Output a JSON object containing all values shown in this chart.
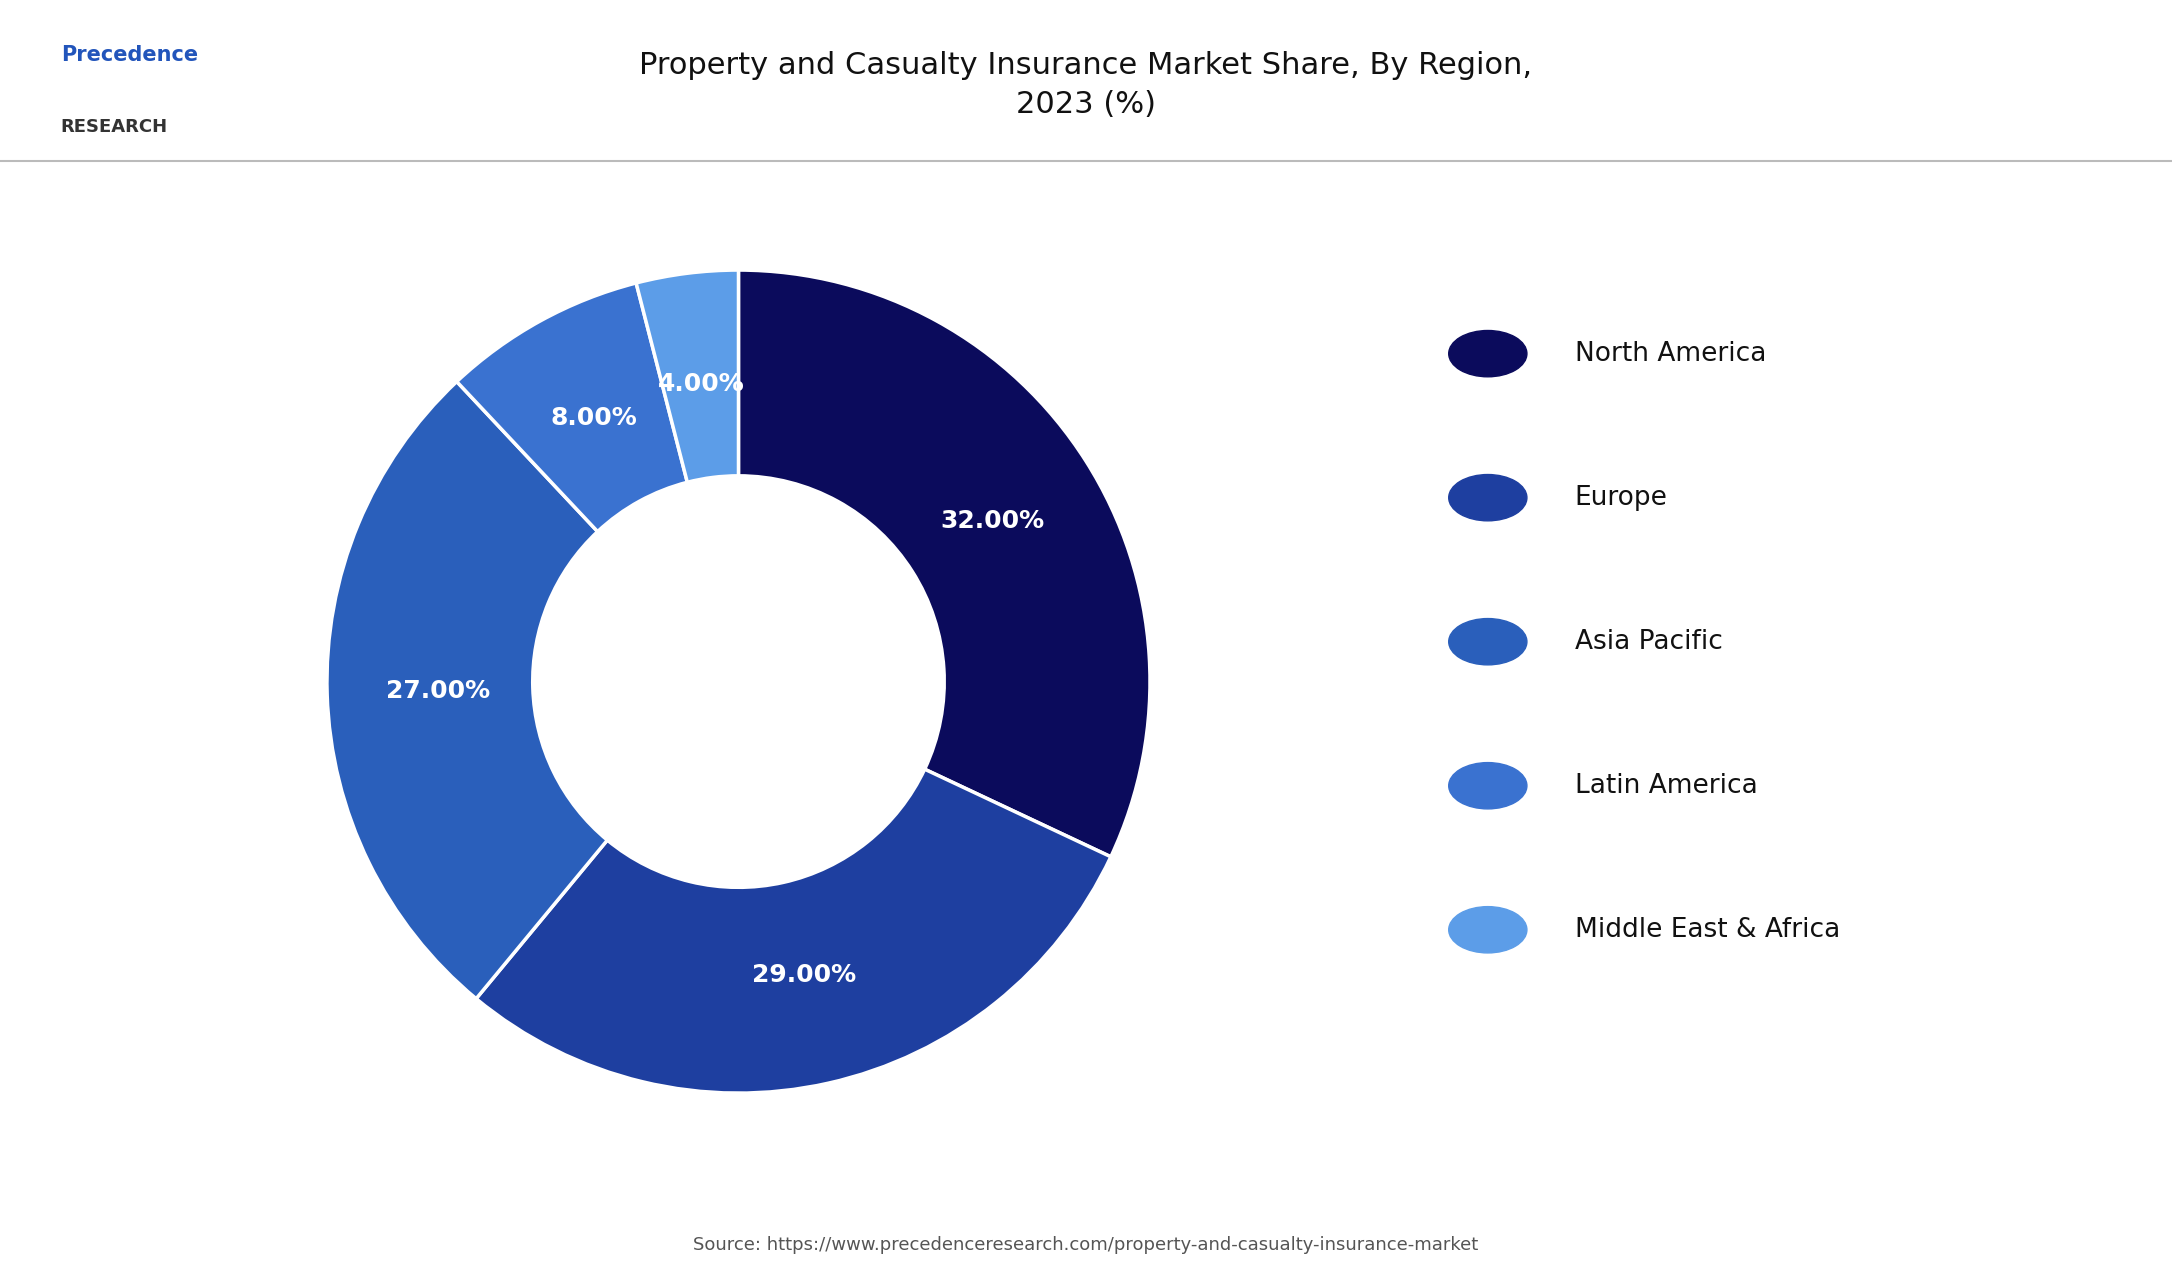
{
  "title": "Property and Casualty Insurance Market Share, By Region,\n2023 (%)",
  "labels": [
    "North America",
    "Europe",
    "Asia Pacific",
    "Latin America",
    "Middle East & Africa"
  ],
  "values": [
    32.0,
    29.0,
    27.0,
    8.0,
    4.0
  ],
  "colors": [
    "#0b0b5c",
    "#1e3fa0",
    "#2a5fbb",
    "#3a72d0",
    "#5c9de8"
  ],
  "pct_labels": [
    "32.00%",
    "29.00%",
    "27.00%",
    "8.00%",
    "4.00%"
  ],
  "source": "Source: https://www.precedenceresearch.com/property-and-casualty-insurance-market",
  "background_color": "#ffffff",
  "title_fontsize": 22,
  "legend_fontsize": 19,
  "label_fontsize": 18
}
